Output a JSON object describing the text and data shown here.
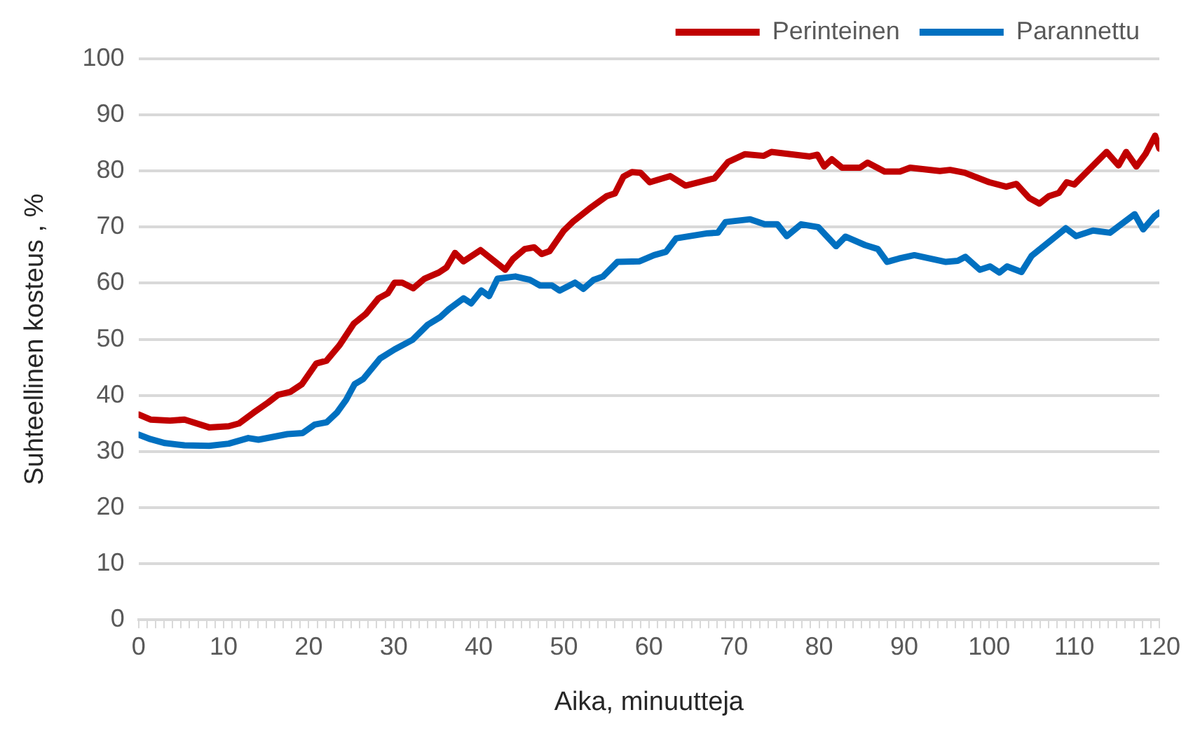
{
  "chart_data": {
    "type": "line",
    "xlabel": "Aika, minuutteja",
    "ylabel": "Suhteellinen kosteus , %",
    "legend": "top right",
    "grid": "y",
    "marker": "none",
    "line_style": "solid",
    "xlim": [
      0,
      120
    ],
    "ylim": [
      0,
      100
    ],
    "yticks": [
      0,
      10,
      20,
      30,
      40,
      50,
      60,
      70,
      80,
      90,
      100
    ],
    "xticks": [
      0,
      {
        "value": 1,
        "label": null
      },
      {
        "value": 2,
        "label": null
      },
      {
        "value": 3,
        "label": null
      },
      {
        "value": 4,
        "label": null
      },
      {
        "value": 5,
        "label": null
      },
      {
        "value": 6,
        "label": null
      },
      {
        "value": 7,
        "label": null
      },
      {
        "value": 8,
        "label": null
      },
      {
        "value": 9,
        "label": null
      },
      10,
      {
        "value": 11,
        "label": null
      },
      {
        "value": 12,
        "label": null
      },
      {
        "value": 13,
        "label": null
      },
      {
        "value": 14,
        "label": null
      },
      {
        "value": 15,
        "label": null
      },
      {
        "value": 16,
        "label": null
      },
      {
        "value": 17,
        "label": null
      },
      {
        "value": 18,
        "label": null
      },
      {
        "value": 19,
        "label": null
      },
      20,
      {
        "value": 21,
        "label": null
      },
      {
        "value": 22,
        "label": null
      },
      {
        "value": 23,
        "label": null
      },
      {
        "value": 24,
        "label": null
      },
      {
        "value": 25,
        "label": null
      },
      {
        "value": 26,
        "label": null
      },
      {
        "value": 27,
        "label": null
      },
      {
        "value": 28,
        "label": null
      },
      {
        "value": 29,
        "label": null
      },
      30,
      {
        "value": 31,
        "label": null
      },
      {
        "value": 32,
        "label": null
      },
      {
        "value": 33,
        "label": null
      },
      {
        "value": 34,
        "label": null
      },
      {
        "value": 35,
        "label": null
      },
      {
        "value": 36,
        "label": null
      },
      {
        "value": 37,
        "label": null
      },
      {
        "value": 38,
        "label": null
      },
      {
        "value": 39,
        "label": null
      },
      40,
      {
        "value": 41,
        "label": null
      },
      {
        "value": 42,
        "label": null
      },
      {
        "value": 43,
        "label": null
      },
      {
        "value": 44,
        "label": null
      },
      {
        "value": 45,
        "label": null
      },
      {
        "value": 46,
        "label": null
      },
      {
        "value": 47,
        "label": null
      },
      {
        "value": 48,
        "label": null
      },
      {
        "value": 49,
        "label": null
      },
      50,
      {
        "value": 51,
        "label": null
      },
      {
        "value": 52,
        "label": null
      },
      {
        "value": 53,
        "label": null
      },
      {
        "value": 54,
        "label": null
      },
      {
        "value": 55,
        "label": null
      },
      {
        "value": 56,
        "label": null
      },
      {
        "value": 57,
        "label": null
      },
      {
        "value": 58,
        "label": null
      },
      {
        "value": 59,
        "label": null
      },
      60,
      {
        "value": 61,
        "label": null
      },
      {
        "value": 62,
        "label": null
      },
      {
        "value": 63,
        "label": null
      },
      {
        "value": 64,
        "label": null
      },
      {
        "value": 65,
        "label": null
      },
      {
        "value": 66,
        "label": null
      },
      {
        "value": 67,
        "label": null
      },
      {
        "value": 68,
        "label": null
      },
      {
        "value": 69,
        "label": null
      },
      70,
      {
        "value": 71,
        "label": null
      },
      {
        "value": 72,
        "label": null
      },
      {
        "value": 73,
        "label": null
      },
      {
        "value": 74,
        "label": null
      },
      {
        "value": 75,
        "label": null
      },
      {
        "value": 76,
        "label": null
      },
      {
        "value": 77,
        "label": null
      },
      {
        "value": 78,
        "label": null
      },
      {
        "value": 79,
        "label": null
      },
      80,
      {
        "value": 81,
        "label": null
      },
      {
        "value": 82,
        "label": null
      },
      {
        "value": 83,
        "label": null
      },
      {
        "value": 84,
        "label": null
      },
      {
        "value": 85,
        "label": null
      },
      {
        "value": 86,
        "label": null
      },
      {
        "value": 87,
        "label": null
      },
      {
        "value": 88,
        "label": null
      },
      {
        "value": 89,
        "label": null
      },
      90,
      {
        "value": 91,
        "label": null
      },
      {
        "value": 92,
        "label": null
      },
      {
        "value": 93,
        "label": null
      },
      {
        "value": 94,
        "label": null
      },
      {
        "value": 95,
        "label": null
      },
      {
        "value": 96,
        "label": null
      },
      {
        "value": 97,
        "label": null
      },
      {
        "value": 98,
        "label": null
      },
      {
        "value": 99,
        "label": null
      },
      100,
      {
        "value": 101,
        "label": null
      },
      {
        "value": 102,
        "label": null
      },
      {
        "value": 103,
        "label": null
      },
      {
        "value": 104,
        "label": null
      },
      {
        "value": 105,
        "label": null
      },
      {
        "value": 106,
        "label": null
      },
      {
        "value": 107,
        "label": null
      },
      {
        "value": 108,
        "label": null
      },
      {
        "value": 109,
        "label": null
      },
      110,
      {
        "value": 111,
        "label": null
      },
      {
        "value": 112,
        "label": null
      },
      {
        "value": 113,
        "label": null
      },
      {
        "value": 114,
        "label": null
      },
      {
        "value": 115,
        "label": null
      },
      {
        "value": 116,
        "label": null
      },
      {
        "value": 117,
        "label": null
      },
      {
        "value": 118,
        "label": null
      },
      {
        "value": 119,
        "label": null
      },
      120
    ],
    "series": [
      {
        "name": "Perinteinen",
        "color": "#c00000",
        "x": [
          0,
          1.4,
          3.7,
          5.4,
          8.3,
          10.6,
          11.8,
          13.5,
          15.2,
          16.4,
          17.8,
          19.2,
          20.9,
          22.1,
          23.6,
          25.3,
          26.7,
          28.2,
          29.3,
          30.1,
          31,
          32.3,
          33.6,
          35.3,
          36.2,
          37.2,
          38.2,
          40.2,
          43.1,
          44,
          45.4,
          46.5,
          47.4,
          48.3,
          50,
          51.1,
          53,
          55,
          56,
          57,
          58,
          59,
          60.1,
          62.5,
          64.3,
          67.7,
          69.3,
          71.3,
          73.5,
          74.4,
          78.9,
          79.8,
          80.6,
          81.5,
          82.7,
          84.8,
          85.7,
          87.7,
          89.5,
          90.7,
          94.2,
          95.4,
          97.1,
          100,
          102,
          103.2,
          104.7,
          105.9,
          107,
          108.2,
          109.1,
          110,
          113.8,
          115.2,
          116.1,
          117.3,
          118.4,
          119.5,
          120
        ],
        "values": [
          36.6,
          35.7,
          35.5,
          35.7,
          34.3,
          34.5,
          35,
          36.9,
          38.7,
          40.1,
          40.6,
          42,
          45.7,
          46.2,
          48.9,
          52.8,
          54.5,
          57.3,
          58.2,
          60.1,
          60.1,
          59.1,
          60.8,
          61.9,
          62.8,
          65.4,
          63.9,
          65.9,
          62.4,
          64.3,
          66.1,
          66.4,
          65.2,
          65.7,
          69.4,
          71,
          73.3,
          75.5,
          76,
          79,
          79.8,
          79.7,
          78,
          79.1,
          77.4,
          78.7,
          81.6,
          83,
          82.7,
          83.4,
          82.6,
          82.9,
          80.8,
          82.1,
          80.6,
          80.6,
          81.5,
          79.9,
          79.9,
          80.6,
          80,
          80.2,
          79.7,
          78,
          77.2,
          77.7,
          75.2,
          74.2,
          75.5,
          76.1,
          78,
          77.6,
          83.4,
          81,
          83.4,
          80.8,
          83.1,
          86.3,
          84
        ]
      },
      {
        "name": "Parannettu",
        "color": "#0070c0",
        "x": [
          0,
          1.4,
          3.1,
          5.4,
          8.3,
          10.6,
          12.9,
          14.1,
          17.5,
          19.3,
          20.7,
          22.1,
          23.3,
          24.4,
          25.4,
          26.4,
          28.4,
          30.1,
          32.2,
          34,
          35.5,
          36.5,
          38.2,
          39.1,
          40.3,
          41.2,
          42.2,
          44.3,
          46,
          47.2,
          48.6,
          49.5,
          51.3,
          52.3,
          53.5,
          54.6,
          56.3,
          58.9,
          60.6,
          62,
          63.2,
          66.9,
          68.1,
          69,
          71.9,
          73.6,
          75.1,
          76.2,
          77.9,
          79.9,
          82,
          83.1,
          85.4,
          86.9,
          88,
          89.4,
          91.2,
          94.9,
          96.3,
          97.2,
          98.9,
          100.1,
          101.2,
          102.1,
          103.8,
          105,
          107.3,
          109,
          110.2,
          112.2,
          114.2,
          117.1,
          118.1,
          119.4,
          120
        ],
        "values": [
          33,
          32.2,
          31.5,
          31.1,
          31,
          31.4,
          32.4,
          32.1,
          33.1,
          33.3,
          34.8,
          35.2,
          36.9,
          39.2,
          42,
          42.9,
          46.6,
          48.2,
          49.9,
          52.6,
          54,
          55.4,
          57.3,
          56.4,
          58.7,
          57.7,
          60.8,
          61.2,
          60.6,
          59.6,
          59.6,
          58.7,
          60.1,
          59,
          60.6,
          61.2,
          63.8,
          63.9,
          65,
          65.6,
          68,
          68.9,
          69,
          70.9,
          71.4,
          70.5,
          70.5,
          68.4,
          70.5,
          70,
          66.6,
          68.3,
          66.8,
          66.1,
          63.8,
          64.4,
          65,
          63.8,
          64,
          64.7,
          62.4,
          63,
          61.9,
          63,
          62,
          64.9,
          67.7,
          69.8,
          68.4,
          69.4,
          69,
          72.3,
          69.6,
          71.9,
          72.6
        ]
      }
    ]
  }
}
